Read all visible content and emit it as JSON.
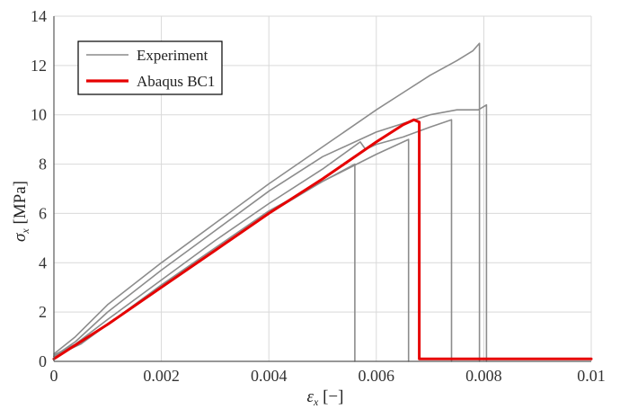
{
  "chart_data": {
    "type": "line",
    "xlabel": {
      "symbol": "ε",
      "sub": "x",
      "unit": " [−]"
    },
    "ylabel": {
      "symbol": "σ",
      "sub": "x",
      "unit": " [MPa]"
    },
    "xlim": [
      0,
      0.01
    ],
    "ylim": [
      0,
      14
    ],
    "x_ticks": [
      0,
      0.002,
      0.004,
      0.006,
      0.008,
      0.01
    ],
    "x_tick_labels": [
      "0",
      "0.002",
      "0.004",
      "0.006",
      "0.008",
      "0.01"
    ],
    "y_ticks": [
      0,
      2,
      4,
      6,
      8,
      10,
      12,
      14
    ],
    "y_tick_labels": [
      "0",
      "2",
      "4",
      "6",
      "8",
      "10",
      "12",
      "14"
    ],
    "grid": true,
    "legend_position": "top-left",
    "legend": [
      {
        "label": "Experiment",
        "color": "#8c8c8c"
      },
      {
        "label": "Abaqus BC1",
        "color": "#e60000"
      }
    ],
    "series": [
      {
        "name": "Experiment",
        "color": "#8c8c8c",
        "x": [
          0,
          0.0004,
          0.001,
          0.002,
          0.003,
          0.004,
          0.005,
          0.006,
          0.0065,
          0.007,
          0.0075,
          0.0078,
          0.00788,
          0.00792,
          0.00792
        ],
        "y": [
          0.3,
          1.0,
          2.3,
          4.0,
          5.6,
          7.2,
          8.7,
          10.2,
          10.9,
          11.6,
          12.2,
          12.6,
          12.8,
          12.9,
          0
        ]
      },
      {
        "name": "Experiment",
        "color": "#8c8c8c",
        "x": [
          0,
          0.0004,
          0.001,
          0.002,
          0.003,
          0.004,
          0.005,
          0.006,
          0.007,
          0.0075,
          0.0079,
          0.00805,
          0.00805
        ],
        "y": [
          0.2,
          0.8,
          2.0,
          3.7,
          5.3,
          6.9,
          8.3,
          9.3,
          10.0,
          10.2,
          10.2,
          10.4,
          0
        ]
      },
      {
        "name": "Experiment",
        "color": "#8c8c8c",
        "x": [
          0,
          0.0004,
          0.001,
          0.002,
          0.003,
          0.004,
          0.005,
          0.0057,
          0.0058,
          0.006,
          0.0065,
          0.007,
          0.0074,
          0.0074
        ],
        "y": [
          0.25,
          0.7,
          1.7,
          3.3,
          4.9,
          6.4,
          7.8,
          8.9,
          8.6,
          8.8,
          9.1,
          9.5,
          9.8,
          0
        ]
      },
      {
        "name": "Experiment",
        "color": "#8c8c8c",
        "x": [
          0,
          0.0005,
          0.001,
          0.002,
          0.003,
          0.004,
          0.005,
          0.006,
          0.0066,
          0.0066
        ],
        "y": [
          0.2,
          0.7,
          1.5,
          3.1,
          4.6,
          6.1,
          7.3,
          8.4,
          9.0,
          0
        ]
      },
      {
        "name": "Experiment",
        "color": "#8c8c8c",
        "x": [
          0,
          0.0005,
          0.001,
          0.002,
          0.003,
          0.004,
          0.005,
          0.0056,
          0.0056
        ],
        "y": [
          0.2,
          0.8,
          1.5,
          3.1,
          4.5,
          6.0,
          7.3,
          8.0,
          0
        ]
      },
      {
        "name": "Abaqus BC1",
        "color": "#e60000",
        "x": [
          0,
          0.001,
          0.002,
          0.003,
          0.004,
          0.005,
          0.006,
          0.0065,
          0.0067,
          0.0068,
          0.0068,
          0.0069,
          0.01
        ],
        "y": [
          0.1,
          1.5,
          3.0,
          4.5,
          6.0,
          7.4,
          8.9,
          9.6,
          9.8,
          9.7,
          0.1,
          0.1,
          0.1
        ]
      }
    ]
  }
}
